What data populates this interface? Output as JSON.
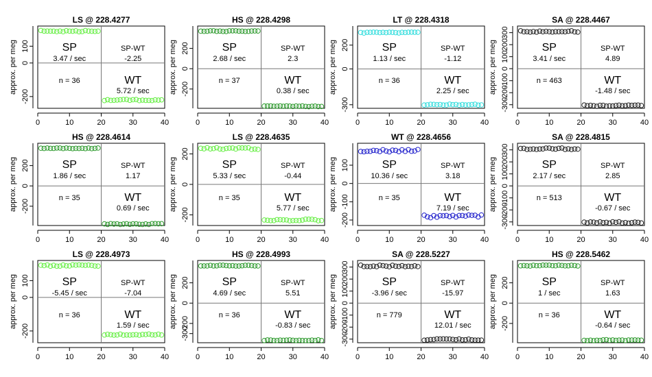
{
  "chart_data": [
    {
      "type": "scatter",
      "title": "LS @ 228.4277",
      "ylabel": "approx. per meg",
      "ylim": [
        -270,
        220
      ],
      "yticks": [
        100,
        0,
        -200
      ],
      "xlim": [
        0,
        40
      ],
      "xticks": [
        0,
        10,
        20,
        30,
        40
      ],
      "color": "#66ee44",
      "sp_level": 190,
      "sp_noise": 4,
      "wt_level": -222,
      "wt_noise": 5,
      "sp_rate": "3.47 / sec",
      "diff": "-2.25",
      "wt_rate": "5.72 / sec",
      "n_label": "n = 36",
      "sp_label": "SP",
      "wt_label": "WT",
      "diff_label": "SP-WT"
    },
    {
      "type": "scatter",
      "title": "HS @ 228.4298",
      "ylabel": "approx. per meg",
      "ylim": [
        -390,
        420
      ],
      "yticks": [
        200,
        0,
        -200
      ],
      "xlim": [
        0,
        40
      ],
      "xticks": [
        0,
        10,
        20,
        30,
        40
      ],
      "color": "#2e9a2e",
      "sp_level": 370,
      "sp_noise": 4,
      "wt_level": -370,
      "wt_noise": 4,
      "sp_rate": "2.68 / sec",
      "diff": "2.3",
      "wt_rate": "0.38 / sec",
      "n_label": "n = 37",
      "sp_label": "SP",
      "wt_label": "WT",
      "diff_label": "SP-WT"
    },
    {
      "type": "scatter",
      "title": "LT @ 228.4318",
      "ylabel": "approx. per meg",
      "ylim": [
        -330,
        360
      ],
      "yticks": [
        200,
        0,
        -300
      ],
      "xlim": [
        0,
        40
      ],
      "xticks": [
        0,
        10,
        20,
        30,
        40
      ],
      "color": "#33dddd",
      "sp_level": 305,
      "sp_noise": 4,
      "wt_level": -300,
      "wt_noise": 5,
      "sp_rate": "1.13 / sec",
      "diff": "-1.12",
      "wt_rate": "2.25 / sec",
      "n_label": "n = 36",
      "sp_label": "SP",
      "wt_label": "WT",
      "diff_label": "SP-WT"
    },
    {
      "type": "scatter",
      "title": "SA @ 228.4467",
      "ylabel": "approx. per meg",
      "ylim": [
        -330,
        355
      ],
      "yticks": [
        300,
        200,
        100,
        0,
        -100,
        -200,
        -300
      ],
      "xlim": [
        0,
        40
      ],
      "xticks": [
        0,
        10,
        20,
        30,
        40
      ],
      "color": "#222222",
      "sp_level": 310,
      "sp_noise": 6,
      "wt_level": -307,
      "wt_noise": 6,
      "sp_rate": "3.41 / sec",
      "diff": "4.89",
      "wt_rate": "-1.48 / sec",
      "n_label": "n = 463",
      "sp_label": "SP",
      "wt_label": "WT",
      "diff_label": "SP-WT"
    },
    {
      "type": "scatter",
      "title": "HS @ 228.4614",
      "ylabel": "approx. per meg",
      "ylim": [
        -390,
        420
      ],
      "yticks": [
        200,
        0,
        -200
      ],
      "xlim": [
        0,
        40
      ],
      "xticks": [
        0,
        10,
        20,
        30,
        40
      ],
      "color": "#2e9a2e",
      "sp_level": 370,
      "sp_noise": 4,
      "wt_level": -375,
      "wt_noise": 5,
      "sp_rate": "1.86 / sec",
      "diff": "1.17",
      "wt_rate": "0.69 / sec",
      "n_label": "n = 35",
      "sp_label": "SP",
      "wt_label": "WT",
      "diff_label": "SP-WT"
    },
    {
      "type": "scatter",
      "title": "LS @ 228.4635",
      "ylabel": "approx. per meg",
      "ylim": [
        -270,
        270
      ],
      "yticks": [
        200,
        0,
        -200
      ],
      "xlim": [
        0,
        40
      ],
      "xticks": [
        0,
        10,
        20,
        30,
        40
      ],
      "color": "#66ee44",
      "sp_level": 235,
      "sp_noise": 6,
      "wt_level": -232,
      "wt_noise": 7,
      "sp_rate": "5.33 / sec",
      "diff": "-0.44",
      "wt_rate": "5.77 / sec",
      "n_label": "n = 35",
      "sp_label": "SP",
      "wt_label": "WT",
      "diff_label": "SP-WT"
    },
    {
      "type": "scatter",
      "title": "WT @ 228.4656",
      "ylabel": "approx. per meg",
      "ylim": [
        -230,
        220
      ],
      "yticks": [
        100,
        0,
        -100,
        -200
      ],
      "xlim": [
        0,
        40
      ],
      "xticks": [
        0,
        10,
        20,
        30,
        40
      ],
      "color": "#2222cc",
      "sp_level": 180,
      "sp_noise": 7,
      "wt_level": -180,
      "wt_noise": 8,
      "sp_rate": "10.36 / sec",
      "diff": "3.18",
      "wt_rate": "7.19 / sec",
      "n_label": "n = 35",
      "sp_label": "SP",
      "wt_label": "WT",
      "diff_label": "SP-WT"
    },
    {
      "type": "scatter",
      "title": "SA @ 228.4815",
      "ylabel": "approx. per meg",
      "ylim": [
        -330,
        355
      ],
      "yticks": [
        300,
        200,
        100,
        0,
        -100,
        -200,
        -300
      ],
      "xlim": [
        0,
        40
      ],
      "xticks": [
        0,
        10,
        20,
        30,
        40
      ],
      "color": "#222222",
      "sp_level": 310,
      "sp_noise": 7,
      "wt_level": -305,
      "wt_noise": 6,
      "sp_rate": "2.17 / sec",
      "diff": "2.85",
      "wt_rate": "-0.67 / sec",
      "n_label": "n = 513",
      "sp_label": "SP",
      "wt_label": "WT",
      "diff_label": "SP-WT"
    },
    {
      "type": "scatter",
      "title": "LS @ 228.4973",
      "ylabel": "approx. per meg",
      "ylim": [
        -270,
        220
      ],
      "yticks": [
        100,
        0,
        -200
      ],
      "xlim": [
        0,
        40
      ],
      "xticks": [
        0,
        10,
        20,
        30,
        40
      ],
      "color": "#66ee44",
      "sp_level": 190,
      "sp_noise": 5,
      "wt_level": -222,
      "wt_noise": 4,
      "sp_rate": "-5.45 / sec",
      "diff": "-7.04",
      "wt_rate": "1.59 / sec",
      "n_label": "n = 36",
      "sp_label": "SP",
      "wt_label": "WT",
      "diff_label": "SP-WT"
    },
    {
      "type": "scatter",
      "title": "HS @ 228.4993",
      "ylabel": "approx. per meg",
      "ylim": [
        -390,
        420
      ],
      "yticks": [
        200,
        0,
        -200,
        -300
      ],
      "xlim": [
        0,
        40
      ],
      "xticks": [
        0,
        10,
        20,
        30,
        40
      ],
      "color": "#2e9a2e",
      "sp_level": 370,
      "sp_noise": 5,
      "wt_level": -365,
      "wt_noise": 4,
      "sp_rate": "4.69 / sec",
      "diff": "5.51",
      "wt_rate": "-0.83 / sec",
      "n_label": "n = 36",
      "sp_label": "SP",
      "wt_label": "WT",
      "diff_label": "SP-WT"
    },
    {
      "type": "scatter",
      "title": "SA @ 228.5227",
      "ylabel": "approx. per meg",
      "ylim": [
        -330,
        355
      ],
      "yticks": [
        300,
        200,
        100,
        0,
        -100,
        -200,
        -300
      ],
      "xlim": [
        0,
        40
      ],
      "xticks": [
        0,
        10,
        20,
        30,
        40
      ],
      "color": "#222222",
      "sp_level": 310,
      "sp_noise": 7,
      "wt_level": -303,
      "wt_noise": 6,
      "sp_rate": "-3.96 / sec",
      "diff": "-15.97",
      "wt_rate": "12.01 / sec",
      "n_label": "n = 779",
      "sp_label": "SP",
      "wt_label": "WT",
      "diff_label": "SP-WT"
    },
    {
      "type": "scatter",
      "title": "HS @ 228.5462",
      "ylabel": "approx. per meg",
      "ylim": [
        -390,
        420
      ],
      "yticks": [
        200,
        0,
        -200
      ],
      "xlim": [
        0,
        40
      ],
      "xticks": [
        0,
        10,
        20,
        30,
        40
      ],
      "color": "#2e9a2e",
      "sp_level": 370,
      "sp_noise": 5,
      "wt_level": -365,
      "wt_noise": 5,
      "sp_rate": "1 / sec",
      "diff": "1.63",
      "wt_rate": "-0.64 / sec",
      "n_label": "n = 36",
      "sp_label": "SP",
      "wt_label": "WT",
      "diff_label": "SP-WT"
    }
  ]
}
